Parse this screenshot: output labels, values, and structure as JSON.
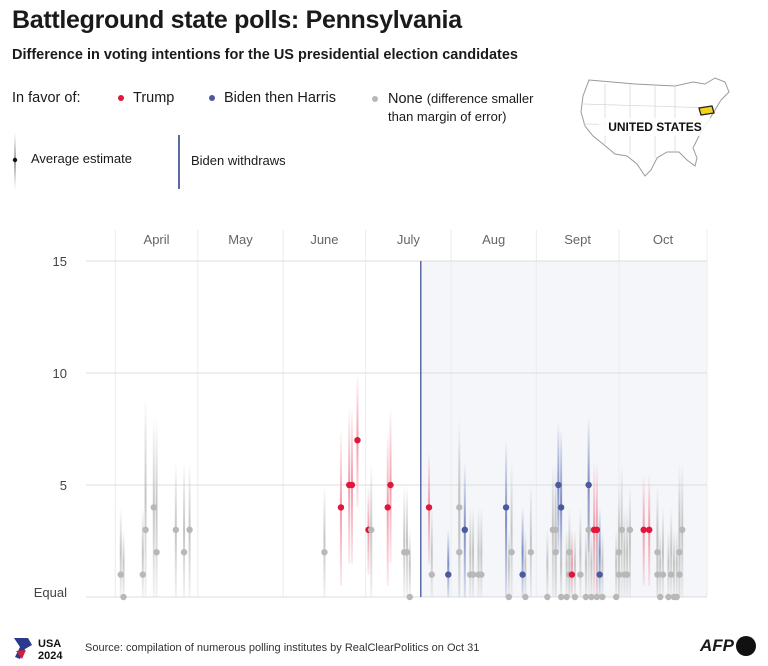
{
  "header": {
    "title": "Battleground state polls: Pennsylvania",
    "subtitle": "Difference in voting intentions for the US presidential election candidates"
  },
  "legend": {
    "in_favor_label": "In favor of:",
    "trump": "Trump",
    "biden_harris": "Biden then Harris",
    "none": "None",
    "none_note_1": "(difference smaller",
    "none_note_2": "than margin of error)",
    "average_estimate": "Average estimate",
    "biden_withdraws": "Biden withdraws"
  },
  "map": {
    "label": "UNITED STATES"
  },
  "footer": {
    "source": "Source: compilation of numerous polling institutes by RealClearPolitics on Oct 31",
    "usa_logo_line1": "USA",
    "usa_logo_line2": "2024",
    "afp": "AFP"
  },
  "colors": {
    "trump": "#e0173b",
    "harris": "#4a5a9c",
    "none": "#b8b8b8",
    "withdraw": "#5a6aa8"
  },
  "chart_data": {
    "type": "scatter",
    "months": [
      "April",
      "May",
      "June",
      "July",
      "Aug",
      "Sept",
      "Oct"
    ],
    "y_ticks": [
      15,
      10,
      5
    ],
    "y_zero_label": "Equal",
    "ylim": [
      0,
      15
    ],
    "x_domain": [
      "2024-03-25",
      "2024-11-02"
    ],
    "withdraw_date": "2024-07-21",
    "points": [
      {
        "date": "2024-04-03",
        "v": 1,
        "c": "none",
        "lo": 0,
        "hi": 4
      },
      {
        "date": "2024-04-04",
        "v": 0,
        "c": "none",
        "lo": 0,
        "hi": 3
      },
      {
        "date": "2024-04-11",
        "v": 1,
        "c": "none",
        "lo": 0,
        "hi": 4
      },
      {
        "date": "2024-04-12",
        "v": 3,
        "c": "none",
        "lo": 0,
        "hi": 9
      },
      {
        "date": "2024-04-15",
        "v": 4,
        "c": "none",
        "lo": 0,
        "hi": 8
      },
      {
        "date": "2024-04-16",
        "v": 2,
        "c": "none",
        "lo": 0,
        "hi": 8
      },
      {
        "date": "2024-04-23",
        "v": 3,
        "c": "none",
        "lo": 0,
        "hi": 6
      },
      {
        "date": "2024-04-26",
        "v": 2,
        "c": "none",
        "lo": 0,
        "hi": 6
      },
      {
        "date": "2024-04-28",
        "v": 3,
        "c": "none",
        "lo": 0,
        "hi": 6
      },
      {
        "date": "2024-06-16",
        "v": 2,
        "c": "none",
        "lo": 0,
        "hi": 5
      },
      {
        "date": "2024-06-22",
        "v": 4,
        "c": "trump",
        "lo": 0.5,
        "hi": 7.5
      },
      {
        "date": "2024-06-25",
        "v": 5,
        "c": "trump",
        "lo": 1.5,
        "hi": 8.5
      },
      {
        "date": "2024-06-26",
        "v": 5,
        "c": "trump",
        "lo": 1.5,
        "hi": 8.5
      },
      {
        "date": "2024-06-28",
        "v": 7,
        "c": "trump",
        "lo": 4,
        "hi": 10
      },
      {
        "date": "2024-07-02",
        "v": 3,
        "c": "trump",
        "lo": 1,
        "hi": 5
      },
      {
        "date": "2024-07-03",
        "v": 3,
        "c": "none",
        "lo": 0,
        "hi": 6
      },
      {
        "date": "2024-07-09",
        "v": 4,
        "c": "trump",
        "lo": 0.5,
        "hi": 7.5
      },
      {
        "date": "2024-07-10",
        "v": 5,
        "c": "trump",
        "lo": 1.5,
        "hi": 8.5
      },
      {
        "date": "2024-07-15",
        "v": 2,
        "c": "none",
        "lo": 0,
        "hi": 5
      },
      {
        "date": "2024-07-16",
        "v": 2,
        "c": "none",
        "lo": 0,
        "hi": 5
      },
      {
        "date": "2024-07-17",
        "v": 0,
        "c": "none",
        "lo": 0,
        "hi": 3
      },
      {
        "date": "2024-07-24",
        "v": 4,
        "c": "trump",
        "lo": 1.5,
        "hi": 6.5
      },
      {
        "date": "2024-07-25",
        "v": 1,
        "c": "none",
        "lo": 0,
        "hi": 4
      },
      {
        "date": "2024-07-31",
        "v": 1,
        "c": "harris",
        "lo": 0,
        "hi": 3
      },
      {
        "date": "2024-08-04",
        "v": 2,
        "c": "none",
        "lo": 0,
        "hi": 8
      },
      {
        "date": "2024-08-04",
        "v": 4,
        "c": "none",
        "lo": 0,
        "hi": 7
      },
      {
        "date": "2024-08-06",
        "v": 3,
        "c": "harris",
        "lo": 0,
        "hi": 6
      },
      {
        "date": "2024-08-08",
        "v": 1,
        "c": "none",
        "lo": 0,
        "hi": 4
      },
      {
        "date": "2024-08-09",
        "v": 1,
        "c": "none",
        "lo": 0,
        "hi": 4
      },
      {
        "date": "2024-08-11",
        "v": 1,
        "c": "none",
        "lo": 0,
        "hi": 4
      },
      {
        "date": "2024-08-12",
        "v": 1,
        "c": "none",
        "lo": 0,
        "hi": 4
      },
      {
        "date": "2024-08-21",
        "v": 4,
        "c": "harris",
        "lo": 0,
        "hi": 7
      },
      {
        "date": "2024-08-22",
        "v": 0,
        "c": "none",
        "lo": 0,
        "hi": 3
      },
      {
        "date": "2024-08-23",
        "v": 2,
        "c": "none",
        "lo": 0,
        "hi": 6
      },
      {
        "date": "2024-08-27",
        "v": 1,
        "c": "harris",
        "lo": 0,
        "hi": 4
      },
      {
        "date": "2024-08-28",
        "v": 0,
        "c": "none",
        "lo": 0,
        "hi": 3
      },
      {
        "date": "2024-08-30",
        "v": 2,
        "c": "none",
        "lo": 0,
        "hi": 5
      },
      {
        "date": "2024-09-05",
        "v": 0,
        "c": "none",
        "lo": 0,
        "hi": 3
      },
      {
        "date": "2024-09-07",
        "v": 3,
        "c": "none",
        "lo": 0,
        "hi": 6
      },
      {
        "date": "2024-09-08",
        "v": 2,
        "c": "none",
        "lo": 0,
        "hi": 5
      },
      {
        "date": "2024-09-08",
        "v": 3,
        "c": "none",
        "lo": 0,
        "hi": 6
      },
      {
        "date": "2024-09-09",
        "v": 5,
        "c": "harris",
        "lo": 2,
        "hi": 7.8
      },
      {
        "date": "2024-09-10",
        "v": 4,
        "c": "harris",
        "lo": 1,
        "hi": 7.5
      },
      {
        "date": "2024-09-10",
        "v": 0,
        "c": "none",
        "lo": 0,
        "hi": 3
      },
      {
        "date": "2024-09-12",
        "v": 0,
        "c": "none",
        "lo": 0,
        "hi": 3
      },
      {
        "date": "2024-09-13",
        "v": 1,
        "c": "none",
        "lo": 0,
        "hi": 3
      },
      {
        "date": "2024-09-13",
        "v": 1,
        "c": "trump",
        "lo": 0,
        "hi": 3
      },
      {
        "date": "2024-09-13",
        "v": 2,
        "c": "none",
        "lo": 0,
        "hi": 4
      },
      {
        "date": "2024-09-15",
        "v": 0,
        "c": "none",
        "lo": 0,
        "hi": 3
      },
      {
        "date": "2024-09-17",
        "v": 1,
        "c": "none",
        "lo": 0,
        "hi": 4
      },
      {
        "date": "2024-09-19",
        "v": 0,
        "c": "none",
        "lo": 0,
        "hi": 3
      },
      {
        "date": "2024-09-20",
        "v": 3,
        "c": "none",
        "lo": 0,
        "hi": 6
      },
      {
        "date": "2024-09-20",
        "v": 5,
        "c": "harris",
        "lo": 2,
        "hi": 8
      },
      {
        "date": "2024-09-21",
        "v": 0,
        "c": "none",
        "lo": 0,
        "hi": 3
      },
      {
        "date": "2024-09-22",
        "v": 3,
        "c": "trump",
        "lo": 0,
        "hi": 6
      },
      {
        "date": "2024-09-23",
        "v": 3,
        "c": "trump",
        "lo": 0,
        "hi": 6
      },
      {
        "date": "2024-09-23",
        "v": 0,
        "c": "none",
        "lo": 0,
        "hi": 3
      },
      {
        "date": "2024-09-24",
        "v": 1,
        "c": "harris",
        "lo": 0,
        "hi": 4
      },
      {
        "date": "2024-09-25",
        "v": 0,
        "c": "none",
        "lo": 0,
        "hi": 3
      },
      {
        "date": "2024-09-30",
        "v": 0,
        "c": "none",
        "lo": 0,
        "hi": 3
      },
      {
        "date": "2024-10-01",
        "v": 1,
        "c": "none",
        "lo": 0,
        "hi": 4
      },
      {
        "date": "2024-10-01",
        "v": 2,
        "c": "none",
        "lo": 0,
        "hi": 5
      },
      {
        "date": "2024-10-02",
        "v": 3,
        "c": "none",
        "lo": 0,
        "hi": 6
      },
      {
        "date": "2024-10-03",
        "v": 1,
        "c": "none",
        "lo": 0,
        "hi": 4
      },
      {
        "date": "2024-10-04",
        "v": 1,
        "c": "none",
        "lo": 0,
        "hi": 4
      },
      {
        "date": "2024-10-05",
        "v": 3,
        "c": "none",
        "lo": 0,
        "hi": 5
      },
      {
        "date": "2024-10-10",
        "v": 3,
        "c": "trump",
        "lo": 0.5,
        "hi": 5.5
      },
      {
        "date": "2024-10-12",
        "v": 3,
        "c": "trump",
        "lo": 0.5,
        "hi": 5.5
      },
      {
        "date": "2024-10-15",
        "v": 2,
        "c": "none",
        "lo": 0,
        "hi": 5
      },
      {
        "date": "2024-10-15",
        "v": 1,
        "c": "none",
        "lo": 0,
        "hi": 4
      },
      {
        "date": "2024-10-16",
        "v": 0,
        "c": "none",
        "lo": 0,
        "hi": 3
      },
      {
        "date": "2024-10-17",
        "v": 1,
        "c": "none",
        "lo": 0,
        "hi": 4
      },
      {
        "date": "2024-10-19",
        "v": 0,
        "c": "none",
        "lo": 0,
        "hi": 3
      },
      {
        "date": "2024-10-20",
        "v": 1,
        "c": "none",
        "lo": 0,
        "hi": 4
      },
      {
        "date": "2024-10-21",
        "v": 0,
        "c": "none",
        "lo": 0,
        "hi": 3
      },
      {
        "date": "2024-10-22",
        "v": 0,
        "c": "none",
        "lo": 0,
        "hi": 3
      },
      {
        "date": "2024-10-23",
        "v": 2,
        "c": "none",
        "lo": 0,
        "hi": 5
      },
      {
        "date": "2024-10-23",
        "v": 1,
        "c": "none",
        "lo": 0,
        "hi": 6
      },
      {
        "date": "2024-10-24",
        "v": 3,
        "c": "none",
        "lo": 0,
        "hi": 6
      }
    ]
  }
}
